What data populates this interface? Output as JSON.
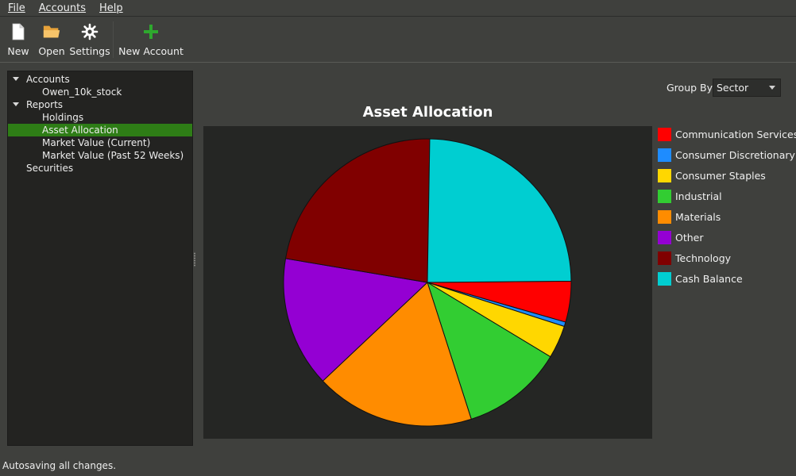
{
  "menubar": {
    "items": [
      {
        "label": "File"
      },
      {
        "label": "Accounts"
      },
      {
        "label": "Help"
      }
    ]
  },
  "toolbar": {
    "new_label": "New",
    "open_label": "Open",
    "settings_label": "Settings",
    "new_account_label": "New Account"
  },
  "tree": {
    "accounts": "Accounts",
    "account_1": "Owen_10k_stock",
    "reports": "Reports",
    "holdings": "Holdings",
    "asset_allocation": "Asset Allocation",
    "market_value_current": "Market Value (Current)",
    "market_value_52": "Market Value (Past 52 Weeks)",
    "securities": "Securities"
  },
  "group_by": {
    "label": "Group By:",
    "value": "Sector"
  },
  "status": "Autosaving all changes.",
  "chart_data": {
    "type": "pie",
    "title": "Asset Allocation",
    "legend_position": "right",
    "slices": [
      {
        "label": "Communication Services",
        "value": 4.6,
        "color": "#ff0000"
      },
      {
        "label": "Consumer Discretionary",
        "value": 0.5,
        "color": "#1e8cff"
      },
      {
        "label": "Consumer Staples",
        "value": 3.7,
        "color": "#ffd700"
      },
      {
        "label": "Industrial",
        "value": 11.4,
        "color": "#32cd32"
      },
      {
        "label": "Materials",
        "value": 17.9,
        "color": "#ff8c00"
      },
      {
        "label": "Other",
        "value": 14.7,
        "color": "#9400d3"
      },
      {
        "label": "Technology",
        "value": 22.6,
        "color": "#800000"
      },
      {
        "label": "Cash Balance",
        "value": 24.6,
        "color": "#00ced1"
      }
    ]
  }
}
